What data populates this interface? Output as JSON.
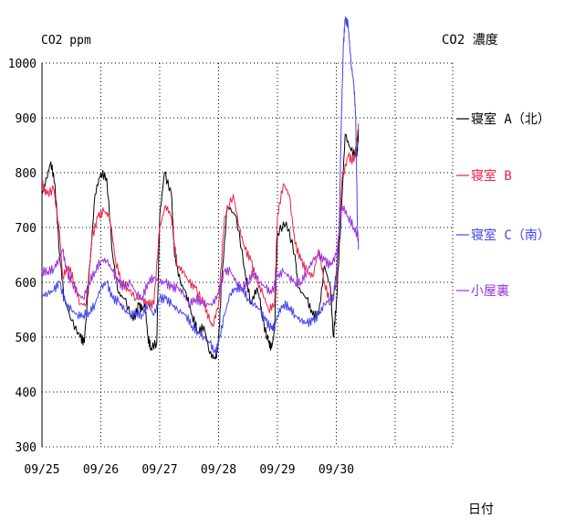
{
  "chart_data": {
    "type": "line",
    "ylabel": "CO2 ppm",
    "title": "CO2 濃度",
    "xlabel": "日付",
    "ylim": [
      300,
      1000
    ],
    "yticks": [
      300,
      400,
      500,
      600,
      700,
      800,
      900,
      1000
    ],
    "xlim": [
      0,
      7
    ],
    "xticks": [
      {
        "x": 0,
        "label": "09/25"
      },
      {
        "x": 1,
        "label": "09/26"
      },
      {
        "x": 2,
        "label": "09/27"
      },
      {
        "x": 3,
        "label": "09/28"
      },
      {
        "x": 4,
        "label": "09/29"
      },
      {
        "x": 5,
        "label": "09/30"
      }
    ],
    "grid": true,
    "legend_position": "right",
    "series": [
      {
        "name": "寝室 A（北）",
        "color": "#000000",
        "points": [
          [
            0,
            760
          ],
          [
            0.08,
            790
          ],
          [
            0.15,
            820
          ],
          [
            0.22,
            780
          ],
          [
            0.3,
            650
          ],
          [
            0.38,
            570
          ],
          [
            0.5,
            530
          ],
          [
            0.65,
            500
          ],
          [
            0.72,
            490
          ],
          [
            0.82,
            640
          ],
          [
            0.9,
            760
          ],
          [
            1.0,
            800
          ],
          [
            1.1,
            790
          ],
          [
            1.2,
            650
          ],
          [
            1.3,
            580
          ],
          [
            1.4,
            570
          ],
          [
            1.55,
            530
          ],
          [
            1.65,
            560
          ],
          [
            1.7,
            550
          ],
          [
            1.75,
            560
          ],
          [
            1.8,
            500
          ],
          [
            1.85,
            480
          ],
          [
            1.95,
            490
          ],
          [
            2.0,
            720
          ],
          [
            2.08,
            800
          ],
          [
            2.2,
            760
          ],
          [
            2.25,
            650
          ],
          [
            2.35,
            600
          ],
          [
            2.45,
            580
          ],
          [
            2.55,
            540
          ],
          [
            2.65,
            510
          ],
          [
            2.75,
            520
          ],
          [
            2.85,
            470
          ],
          [
            2.95,
            460
          ],
          [
            3.0,
            490
          ],
          [
            3.05,
            600
          ],
          [
            3.15,
            740
          ],
          [
            3.3,
            720
          ],
          [
            3.45,
            620
          ],
          [
            3.55,
            560
          ],
          [
            3.65,
            590
          ],
          [
            3.7,
            570
          ],
          [
            3.75,
            530
          ],
          [
            3.85,
            490
          ],
          [
            3.9,
            480
          ],
          [
            3.95,
            510
          ],
          [
            4.0,
            690
          ],
          [
            4.15,
            710
          ],
          [
            4.3,
            650
          ],
          [
            4.35,
            590
          ],
          [
            4.5,
            570
          ],
          [
            4.6,
            540
          ],
          [
            4.7,
            540
          ],
          [
            4.8,
            630
          ],
          [
            4.9,
            590
          ],
          [
            4.95,
            500
          ],
          [
            5.0,
            560
          ],
          [
            5.08,
            720
          ],
          [
            5.15,
            870
          ],
          [
            5.25,
            840
          ],
          [
            5.35,
            830
          ],
          [
            5.38,
            880
          ]
        ]
      },
      {
        "name": "寝室 B",
        "color": "#ee2244",
        "points": [
          [
            0,
            780
          ],
          [
            0.08,
            760
          ],
          [
            0.2,
            770
          ],
          [
            0.3,
            690
          ],
          [
            0.35,
            610
          ],
          [
            0.45,
            630
          ],
          [
            0.55,
            600
          ],
          [
            0.65,
            560
          ],
          [
            0.75,
            560
          ],
          [
            0.85,
            680
          ],
          [
            0.95,
            720
          ],
          [
            1.05,
            730
          ],
          [
            1.15,
            720
          ],
          [
            1.25,
            640
          ],
          [
            1.35,
            600
          ],
          [
            1.45,
            590
          ],
          [
            1.6,
            570
          ],
          [
            1.7,
            570
          ],
          [
            1.8,
            560
          ],
          [
            1.9,
            560
          ],
          [
            2.0,
            700
          ],
          [
            2.1,
            740
          ],
          [
            2.2,
            720
          ],
          [
            2.25,
            670
          ],
          [
            2.3,
            630
          ],
          [
            2.4,
            620
          ],
          [
            2.5,
            600
          ],
          [
            2.6,
            590
          ],
          [
            2.75,
            560
          ],
          [
            2.85,
            530
          ],
          [
            2.9,
            520
          ],
          [
            3.0,
            560
          ],
          [
            3.1,
            720
          ],
          [
            3.25,
            760
          ],
          [
            3.35,
            700
          ],
          [
            3.45,
            660
          ],
          [
            3.55,
            640
          ],
          [
            3.65,
            600
          ],
          [
            3.75,
            580
          ],
          [
            3.85,
            550
          ],
          [
            3.95,
            560
          ],
          [
            4.0,
            720
          ],
          [
            4.1,
            780
          ],
          [
            4.2,
            760
          ],
          [
            4.3,
            670
          ],
          [
            4.4,
            640
          ],
          [
            4.5,
            620
          ],
          [
            4.6,
            610
          ],
          [
            4.7,
            660
          ],
          [
            4.8,
            600
          ],
          [
            4.9,
            560
          ],
          [
            5.0,
            600
          ],
          [
            5.1,
            790
          ],
          [
            5.2,
            830
          ],
          [
            5.3,
            820
          ],
          [
            5.35,
            860
          ],
          [
            5.38,
            890
          ]
        ]
      },
      {
        "name": "寝室 C（南）",
        "color": "#4444ee",
        "points": [
          [
            0,
            575
          ],
          [
            0.1,
            580
          ],
          [
            0.2,
            585
          ],
          [
            0.3,
            600
          ],
          [
            0.4,
            560
          ],
          [
            0.5,
            550
          ],
          [
            0.6,
            540
          ],
          [
            0.7,
            540
          ],
          [
            0.8,
            545
          ],
          [
            0.9,
            560
          ],
          [
            1.0,
            590
          ],
          [
            1.1,
            600
          ],
          [
            1.2,
            570
          ],
          [
            1.3,
            565
          ],
          [
            1.4,
            550
          ],
          [
            1.5,
            540
          ],
          [
            1.6,
            545
          ],
          [
            1.7,
            540
          ],
          [
            1.8,
            560
          ],
          [
            1.9,
            540
          ],
          [
            2.0,
            570
          ],
          [
            2.1,
            570
          ],
          [
            2.2,
            560
          ],
          [
            2.3,
            550
          ],
          [
            2.45,
            540
          ],
          [
            2.55,
            520
          ],
          [
            2.65,
            510
          ],
          [
            2.75,
            500
          ],
          [
            2.85,
            490
          ],
          [
            2.95,
            470
          ],
          [
            3.0,
            490
          ],
          [
            3.1,
            540
          ],
          [
            3.2,
            580
          ],
          [
            3.3,
            590
          ],
          [
            3.4,
            590
          ],
          [
            3.5,
            570
          ],
          [
            3.6,
            560
          ],
          [
            3.7,
            550
          ],
          [
            3.8,
            530
          ],
          [
            3.9,
            515
          ],
          [
            3.95,
            520
          ],
          [
            4.0,
            540
          ],
          [
            4.1,
            560
          ],
          [
            4.2,
            555
          ],
          [
            4.3,
            540
          ],
          [
            4.4,
            530
          ],
          [
            4.5,
            525
          ],
          [
            4.6,
            530
          ],
          [
            4.7,
            540
          ],
          [
            4.8,
            560
          ],
          [
            4.9,
            570
          ],
          [
            4.95,
            570
          ],
          [
            5.0,
            620
          ],
          [
            5.05,
            700
          ],
          [
            5.08,
            870
          ],
          [
            5.12,
            1030
          ],
          [
            5.15,
            1080
          ],
          [
            5.2,
            1070
          ],
          [
            5.25,
            1000
          ],
          [
            5.3,
            960
          ],
          [
            5.33,
            900
          ],
          [
            5.36,
            700
          ],
          [
            5.38,
            660
          ]
        ]
      },
      {
        "name": "小屋裏",
        "color": "#9933dd",
        "points": [
          [
            0,
            620
          ],
          [
            0.1,
            620
          ],
          [
            0.2,
            625
          ],
          [
            0.28,
            640
          ],
          [
            0.35,
            660
          ],
          [
            0.42,
            620
          ],
          [
            0.5,
            600
          ],
          [
            0.6,
            580
          ],
          [
            0.7,
            570
          ],
          [
            0.8,
            600
          ],
          [
            0.9,
            620
          ],
          [
            1.0,
            640
          ],
          [
            1.1,
            640
          ],
          [
            1.2,
            620
          ],
          [
            1.3,
            600
          ],
          [
            1.4,
            590
          ],
          [
            1.5,
            600
          ],
          [
            1.6,
            580
          ],
          [
            1.7,
            570
          ],
          [
            1.8,
            600
          ],
          [
            1.9,
            610
          ],
          [
            2.0,
            600
          ],
          [
            2.1,
            600
          ],
          [
            2.2,
            590
          ],
          [
            2.3,
            590
          ],
          [
            2.4,
            580
          ],
          [
            2.5,
            560
          ],
          [
            2.6,
            570
          ],
          [
            2.7,
            565
          ],
          [
            2.8,
            560
          ],
          [
            2.9,
            560
          ],
          [
            3.0,
            580
          ],
          [
            3.1,
            620
          ],
          [
            3.2,
            620
          ],
          [
            3.3,
            600
          ],
          [
            3.4,
            590
          ],
          [
            3.5,
            600
          ],
          [
            3.6,
            620
          ],
          [
            3.7,
            600
          ],
          [
            3.8,
            590
          ],
          [
            3.9,
            580
          ],
          [
            4.0,
            610
          ],
          [
            4.1,
            620
          ],
          [
            4.2,
            610
          ],
          [
            4.3,
            600
          ],
          [
            4.4,
            600
          ],
          [
            4.5,
            620
          ],
          [
            4.6,
            640
          ],
          [
            4.7,
            650
          ],
          [
            4.8,
            640
          ],
          [
            4.9,
            630
          ],
          [
            5.0,
            650
          ],
          [
            5.1,
            740
          ],
          [
            5.2,
            720
          ],
          [
            5.3,
            700
          ],
          [
            5.38,
            680
          ]
        ]
      }
    ]
  }
}
